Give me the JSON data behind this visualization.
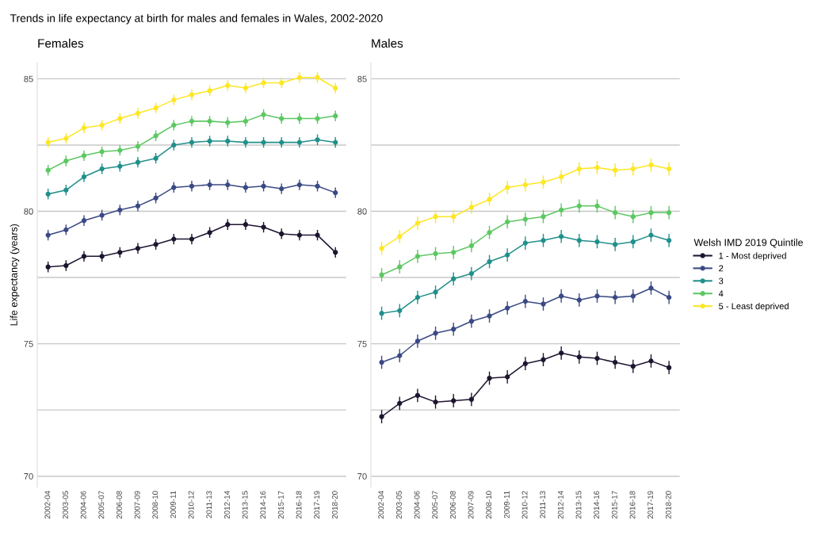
{
  "chart_data": [
    {
      "type": "line",
      "title": "Females",
      "ylabel": "Life expectancy (years)",
      "annotations": [
        "Trends in life expectancy at birth for males and females in Wales, 2002-2020"
      ],
      "categories": [
        "2002-04",
        "2003-05",
        "2004-06",
        "2005-07",
        "2006-08",
        "2007-09",
        "2008-10",
        "2009-11",
        "2010-12",
        "2011-13",
        "2012-14",
        "2013-15",
        "2014-16",
        "2015-17",
        "2016-18",
        "2017-19",
        "2018-20"
      ],
      "ylim": [
        69.6,
        85.6
      ],
      "yticks": [
        70,
        {
          "value": 72.5,
          "label": null
        },
        75,
        {
          "value": 77.5,
          "label": null
        },
        80,
        {
          "value": 82.5,
          "label": null
        },
        85
      ],
      "grid": "y",
      "marker": "circle",
      "line_style": "solid",
      "series": [
        {
          "color": "#1e1530",
          "values": [
            77.9,
            77.95,
            78.3,
            78.3,
            78.45,
            78.6,
            78.75,
            78.95,
            78.95,
            79.2,
            79.5,
            79.5,
            79.4,
            79.15,
            79.1,
            79.1,
            78.45
          ],
          "errors": [
            0.2,
            0.2,
            0.2,
            0.2,
            0.2,
            0.2,
            0.2,
            0.2,
            0.2,
            0.2,
            0.2,
            0.2,
            0.2,
            0.2,
            0.2,
            0.2,
            0.2
          ]
        },
        {
          "color": "#3b4a85",
          "values": [
            79.1,
            79.3,
            79.65,
            79.85,
            80.05,
            80.2,
            80.5,
            80.9,
            80.95,
            81.0,
            81.0,
            80.9,
            80.95,
            80.85,
            81.0,
            80.95,
            80.7
          ],
          "errors": [
            0.2,
            0.2,
            0.2,
            0.2,
            0.2,
            0.2,
            0.2,
            0.2,
            0.2,
            0.2,
            0.2,
            0.2,
            0.2,
            0.2,
            0.2,
            0.2,
            0.2
          ]
        },
        {
          "color": "#21908c",
          "values": [
            80.65,
            80.8,
            81.3,
            81.6,
            81.7,
            81.85,
            82.0,
            82.5,
            82.6,
            82.65,
            82.65,
            82.6,
            82.6,
            82.6,
            82.6,
            82.7,
            82.6
          ],
          "errors": [
            0.2,
            0.2,
            0.2,
            0.2,
            0.2,
            0.2,
            0.2,
            0.2,
            0.2,
            0.2,
            0.2,
            0.2,
            0.2,
            0.2,
            0.2,
            0.2,
            0.2
          ]
        },
        {
          "color": "#5dc863",
          "values": [
            81.55,
            81.9,
            82.1,
            82.25,
            82.3,
            82.45,
            82.85,
            83.25,
            83.4,
            83.4,
            83.35,
            83.4,
            83.65,
            83.5,
            83.5,
            83.5,
            83.6
          ],
          "errors": [
            0.2,
            0.2,
            0.2,
            0.2,
            0.2,
            0.2,
            0.2,
            0.2,
            0.2,
            0.2,
            0.2,
            0.2,
            0.2,
            0.2,
            0.2,
            0.2,
            0.2
          ]
        },
        {
          "color": "#fde725",
          "values": [
            82.6,
            82.75,
            83.15,
            83.25,
            83.5,
            83.7,
            83.9,
            84.2,
            84.4,
            84.55,
            84.75,
            84.65,
            84.85,
            84.85,
            85.05,
            85.05,
            84.65
          ],
          "errors": [
            0.2,
            0.2,
            0.2,
            0.2,
            0.2,
            0.2,
            0.2,
            0.2,
            0.2,
            0.2,
            0.2,
            0.2,
            0.2,
            0.2,
            0.2,
            0.2,
            0.2
          ]
        }
      ]
    },
    {
      "type": "line",
      "title": "Males",
      "legend_title": "Welsh IMD 2019 Quintile",
      "categories": [
        "2002-04",
        "2003-05",
        "2004-06",
        "2005-07",
        "2006-08",
        "2007-09",
        "2008-10",
        "2009-11",
        "2010-12",
        "2011-13",
        "2012-14",
        "2013-15",
        "2014-16",
        "2015-17",
        "2016-18",
        "2017-19",
        "2018-20"
      ],
      "ylim": [
        69.6,
        85.6
      ],
      "yticks": [
        70,
        {
          "value": 72.5,
          "label": null
        },
        75,
        {
          "value": 77.5,
          "label": null
        },
        80,
        {
          "value": 82.5,
          "label": null
        },
        85
      ],
      "grid": "y",
      "legend": "right",
      "marker": "circle",
      "line_style": "solid",
      "series": [
        {
          "name": "1 - Most deprived",
          "color": "#1e1530",
          "values": [
            72.25,
            72.75,
            73.05,
            72.8,
            72.85,
            72.9,
            73.7,
            73.75,
            74.25,
            74.4,
            74.65,
            74.5,
            74.45,
            74.3,
            74.15,
            74.35,
            74.1
          ],
          "errors": [
            0.25,
            0.25,
            0.25,
            0.25,
            0.25,
            0.25,
            0.25,
            0.25,
            0.25,
            0.25,
            0.25,
            0.25,
            0.25,
            0.25,
            0.25,
            0.25,
            0.25
          ]
        },
        {
          "name": "2",
          "color": "#3b4a85",
          "values": [
            74.3,
            74.55,
            75.1,
            75.4,
            75.55,
            75.85,
            76.05,
            76.35,
            76.6,
            76.5,
            76.8,
            76.65,
            76.8,
            76.75,
            76.8,
            77.1,
            76.75
          ],
          "errors": [
            0.25,
            0.25,
            0.25,
            0.25,
            0.25,
            0.25,
            0.25,
            0.25,
            0.25,
            0.25,
            0.25,
            0.25,
            0.25,
            0.25,
            0.25,
            0.25,
            0.25
          ]
        },
        {
          "name": "3",
          "color": "#21908c",
          "values": [
            76.15,
            76.25,
            76.75,
            76.95,
            77.45,
            77.65,
            78.1,
            78.35,
            78.8,
            78.9,
            79.05,
            78.9,
            78.85,
            78.75,
            78.85,
            79.1,
            78.9
          ],
          "errors": [
            0.25,
            0.25,
            0.25,
            0.25,
            0.25,
            0.25,
            0.25,
            0.25,
            0.25,
            0.25,
            0.25,
            0.25,
            0.25,
            0.25,
            0.25,
            0.25,
            0.25
          ]
        },
        {
          "name": "4",
          "color": "#5dc863",
          "values": [
            77.6,
            77.9,
            78.3,
            78.4,
            78.45,
            78.7,
            79.2,
            79.6,
            79.7,
            79.8,
            80.05,
            80.2,
            80.2,
            79.95,
            79.8,
            79.95,
            79.95
          ],
          "errors": [
            0.25,
            0.25,
            0.25,
            0.25,
            0.25,
            0.25,
            0.25,
            0.25,
            0.25,
            0.25,
            0.25,
            0.25,
            0.25,
            0.25,
            0.25,
            0.25,
            0.25
          ]
        },
        {
          "name": "5 - Least deprived",
          "color": "#fde725",
          "values": [
            78.6,
            79.05,
            79.55,
            79.8,
            79.8,
            80.15,
            80.45,
            80.9,
            81.0,
            81.1,
            81.3,
            81.6,
            81.65,
            81.55,
            81.6,
            81.75,
            81.6
          ],
          "errors": [
            0.25,
            0.25,
            0.25,
            0.25,
            0.25,
            0.25,
            0.25,
            0.25,
            0.25,
            0.25,
            0.25,
            0.25,
            0.25,
            0.25,
            0.25,
            0.25,
            0.25
          ]
        }
      ]
    }
  ]
}
